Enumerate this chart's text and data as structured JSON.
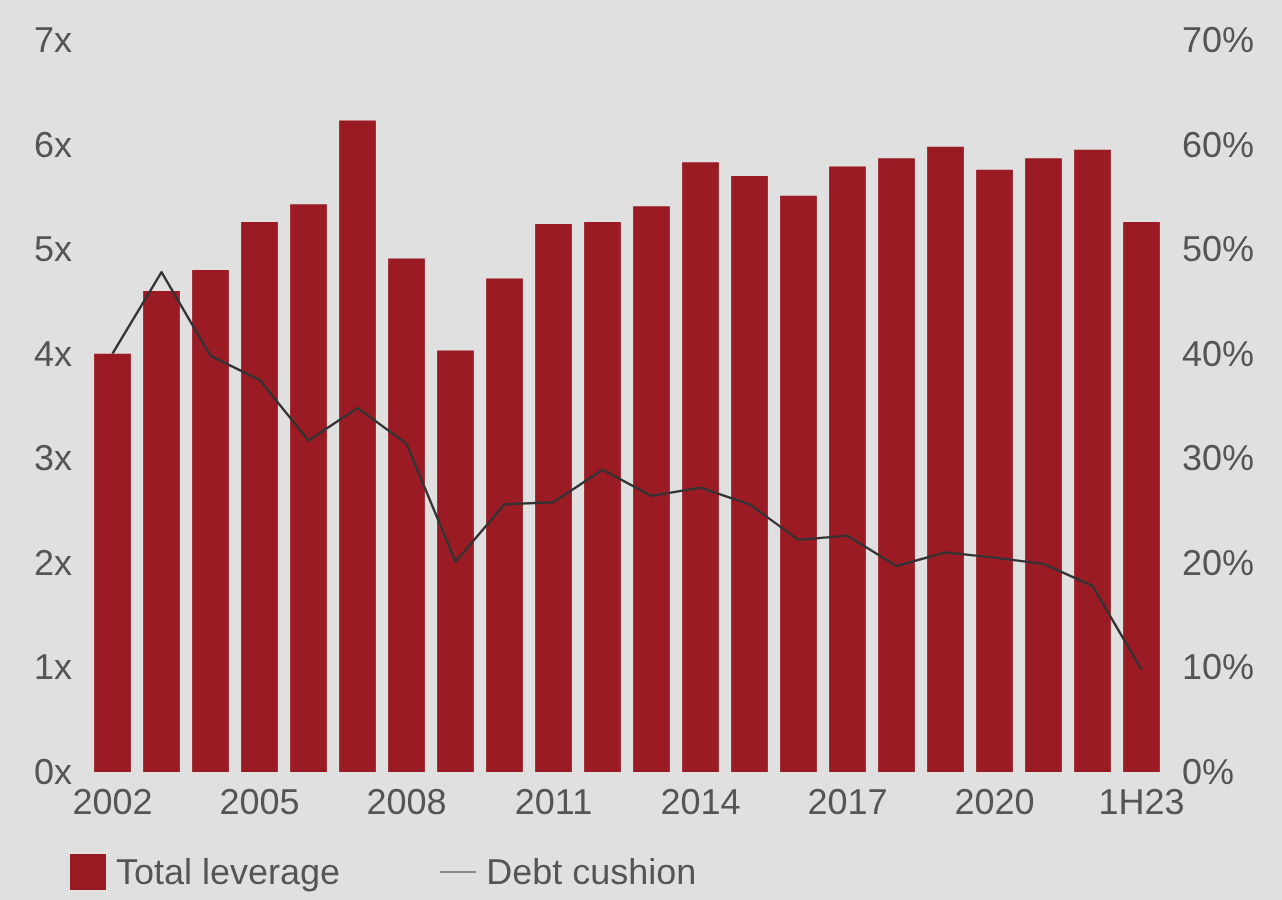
{
  "chart_data": {
    "type": "bar",
    "categories": [
      "2002",
      null,
      null,
      "2005",
      null,
      null,
      "2008",
      null,
      null,
      "2011",
      null,
      null,
      "2014",
      null,
      null,
      "2017",
      null,
      null,
      "2020",
      null,
      null,
      "1H23"
    ],
    "series": [
      {
        "name": "Total leverage",
        "color": "#9b1b24",
        "values": [
          4.0,
          4.6,
          4.8,
          5.26,
          5.43,
          6.23,
          4.91,
          4.03,
          4.72,
          5.24,
          5.26,
          5.41,
          5.83,
          5.7,
          5.51,
          5.79,
          5.87,
          5.98,
          5.76,
          5.87,
          5.95,
          5.26
        ]
      },
      {
        "name": "Debt cushion",
        "type": "line",
        "axis": "y2",
        "color": "#333333",
        "values": [
          40,
          47.8,
          39.8,
          37.5,
          31.7,
          34.8,
          31.4,
          20.1,
          25.6,
          25.8,
          28.9,
          26.4,
          27.2,
          25.6,
          22.2,
          22.6,
          19.7,
          21,
          20.5,
          19.9,
          17.8,
          9.8
        ]
      }
    ],
    "ylim": [
      0,
      7
    ],
    "yticks": [
      {
        "value": 0,
        "label": "0x"
      },
      {
        "value": 1,
        "label": "1x"
      },
      {
        "value": 2,
        "label": "2x"
      },
      {
        "value": 3,
        "label": "3x"
      },
      {
        "value": 4,
        "label": "4x"
      },
      {
        "value": 5,
        "label": "5x"
      },
      {
        "value": 6,
        "label": "6x"
      },
      {
        "value": 7,
        "label": "7x"
      }
    ],
    "y2lim": [
      0,
      70
    ],
    "y2ticks": [
      {
        "value": 0,
        "label": "0%"
      },
      {
        "value": 10,
        "label": "10%"
      },
      {
        "value": 20,
        "label": "20%"
      },
      {
        "value": 30,
        "label": "30%"
      },
      {
        "value": 40,
        "label": "40%"
      },
      {
        "value": 50,
        "label": "50%"
      },
      {
        "value": 60,
        "label": "60%"
      },
      {
        "value": 70,
        "label": "70%"
      }
    ],
    "legend": "bottom left",
    "marker": "none"
  }
}
